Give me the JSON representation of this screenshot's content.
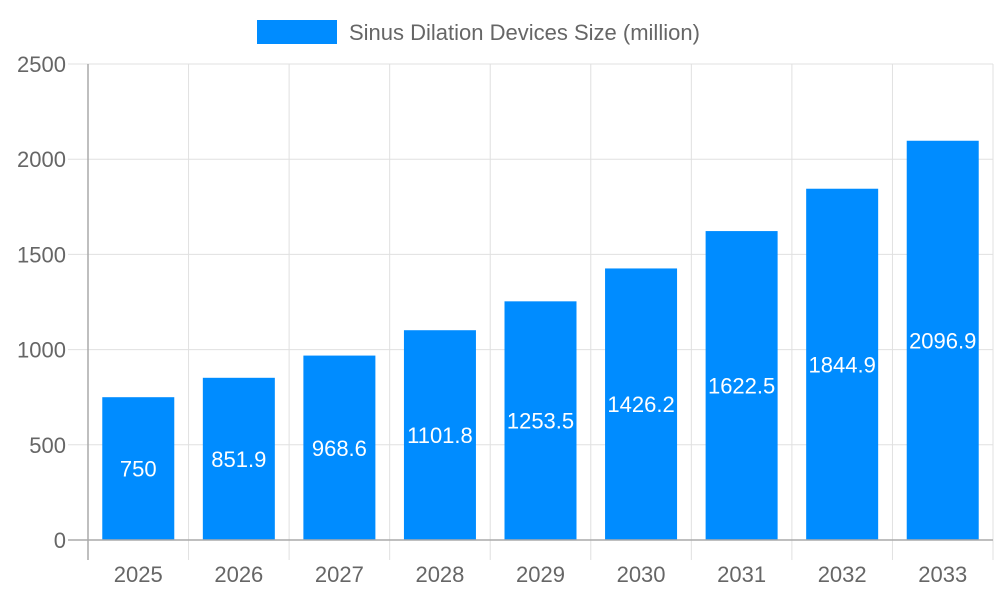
{
  "chart_data": {
    "type": "bar",
    "categories": [
      "2025",
      "2026",
      "2027",
      "2028",
      "2029",
      "2030",
      "2031",
      "2032",
      "2033"
    ],
    "series": [
      {
        "name": "Sinus Dilation Devices Size (million)",
        "values": [
          750,
          851.9,
          968.6,
          1101.8,
          1253.5,
          1426.2,
          1622.5,
          1844.9,
          2096.9
        ],
        "color": "#008cff"
      }
    ],
    "yticks": [
      0,
      500,
      1000,
      1500,
      2000,
      2500
    ],
    "ylim": [
      0,
      2500
    ],
    "grid": true,
    "legend": "top-center",
    "data_labels": true,
    "xlabel": "",
    "ylabel": "",
    "title": ""
  }
}
